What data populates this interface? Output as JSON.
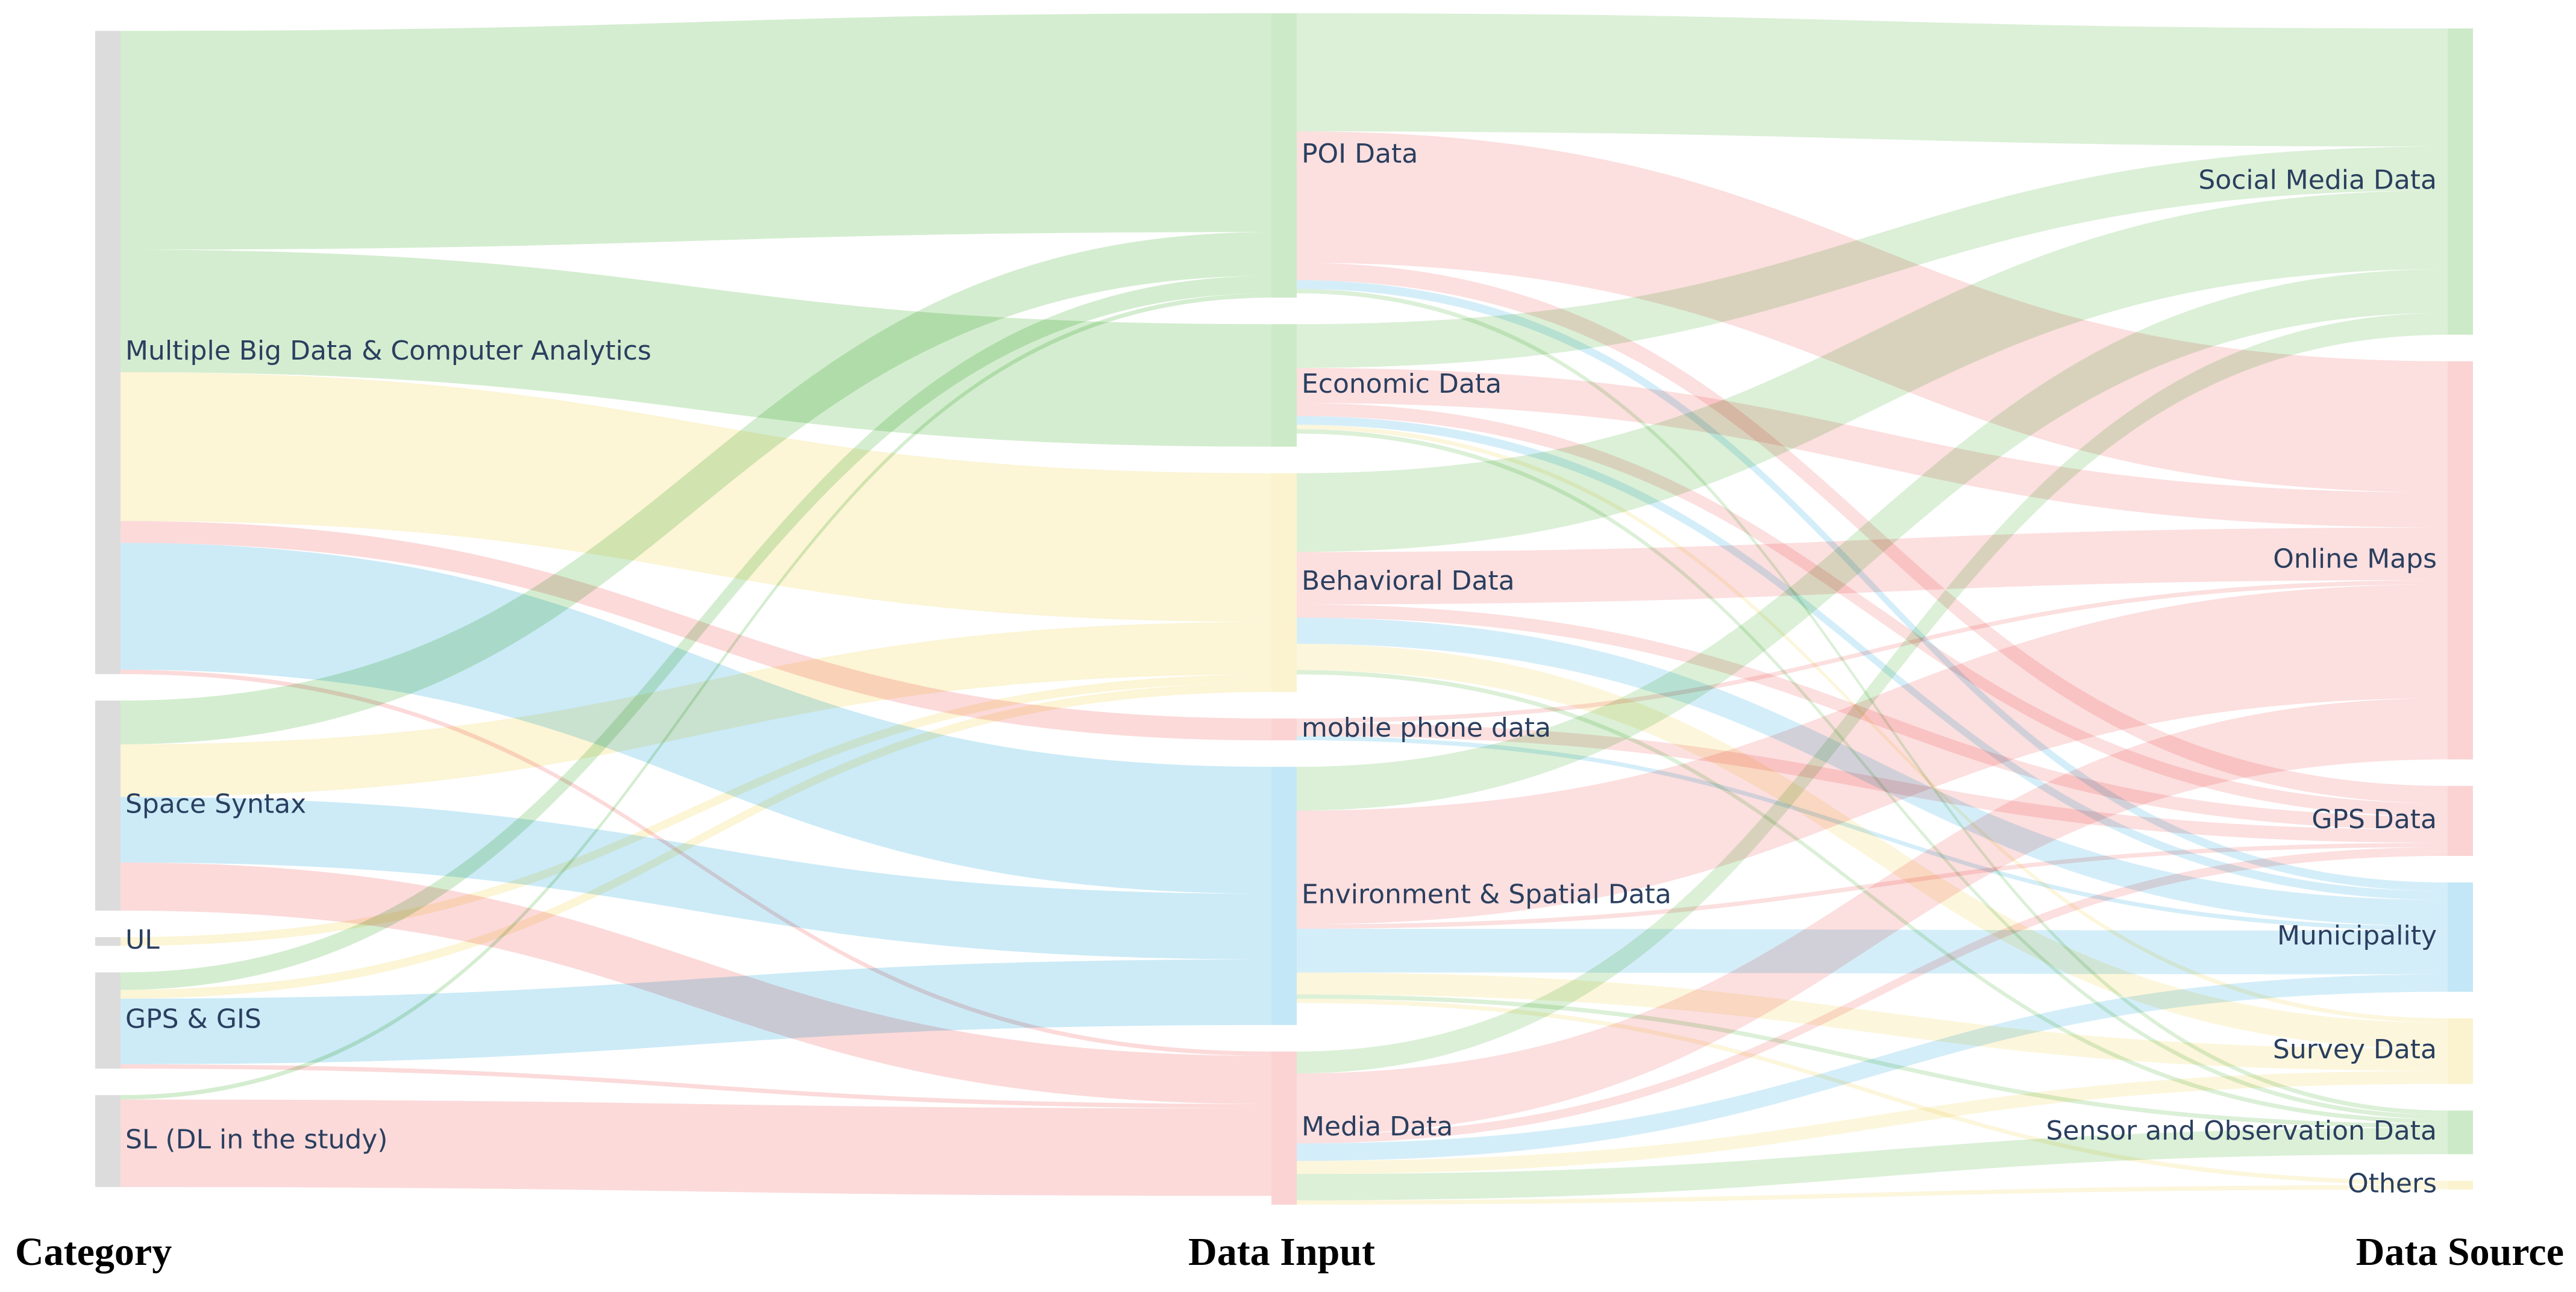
{
  "columns": [
    {
      "id": "category",
      "title": "Category"
    },
    {
      "id": "input",
      "title": "Data Input"
    },
    {
      "id": "source",
      "title": "Data Source"
    }
  ],
  "colors": {
    "category_node": "#dcdcdc",
    "green": "#cdeac8",
    "yellow": "#fbf3cf",
    "blue": "#c3e7f6",
    "red": "#fbd3d3",
    "label": "#2a3f5f"
  },
  "nodes": {
    "category": [
      {
        "id": "mbd",
        "label": "Multiple Big Data & Computer Analytics"
      },
      {
        "id": "ss",
        "label": "Space Syntax"
      },
      {
        "id": "ul",
        "label": "UL"
      },
      {
        "id": "gps",
        "label": "GPS & GIS"
      },
      {
        "id": "sl",
        "label": "SL (DL in the study)"
      }
    ],
    "input": [
      {
        "id": "poi",
        "label": "POI Data",
        "color": "green"
      },
      {
        "id": "eco",
        "label": "Economic Data",
        "color": "green"
      },
      {
        "id": "beh",
        "label": "Behavioral Data",
        "color": "yellow"
      },
      {
        "id": "mob",
        "label": "mobile phone data",
        "color": "red"
      },
      {
        "id": "env",
        "label": "Environment & Spatial Data",
        "color": "blue"
      },
      {
        "id": "med",
        "label": "Media Data",
        "color": "red"
      }
    ],
    "source": [
      {
        "id": "smd",
        "label": "Social Media Data",
        "color": "green"
      },
      {
        "id": "om",
        "label": "Online Maps",
        "color": "red"
      },
      {
        "id": "gpsd",
        "label": "GPS Data",
        "color": "red"
      },
      {
        "id": "mun",
        "label": "Municipality",
        "color": "blue"
      },
      {
        "id": "sur",
        "label": "Survey Data",
        "color": "yellow"
      },
      {
        "id": "sen",
        "label": "Sensor and Observation Data",
        "color": "green"
      },
      {
        "id": "oth",
        "label": "Others",
        "color": "yellow"
      }
    ]
  },
  "links_left": [
    {
      "source": "mbd",
      "target": "poi",
      "value": 50,
      "color": "green"
    },
    {
      "source": "mbd",
      "target": "eco",
      "value": 28,
      "color": "green"
    },
    {
      "source": "mbd",
      "target": "beh",
      "value": 32,
      "color": "yellow"
    },
    {
      "source": "mbd",
      "target": "beh",
      "value": 2,
      "color": "yellow"
    },
    {
      "source": "mbd",
      "target": "mob",
      "value": 5,
      "color": "red"
    },
    {
      "source": "mbd",
      "target": "env",
      "value": 29,
      "color": "blue"
    },
    {
      "source": "mbd",
      "target": "med",
      "value": 1,
      "color": "red"
    },
    {
      "source": "ss",
      "target": "poi",
      "value": 10,
      "color": "green"
    },
    {
      "source": "ss",
      "target": "beh",
      "value": 12,
      "color": "yellow"
    },
    {
      "source": "ss",
      "target": "env",
      "value": 15,
      "color": "blue"
    },
    {
      "source": "ss",
      "target": "med",
      "value": 11,
      "color": "red"
    },
    {
      "source": "ul",
      "target": "beh",
      "value": 2,
      "color": "yellow"
    },
    {
      "source": "gps",
      "target": "poi",
      "value": 4,
      "color": "green"
    },
    {
      "source": "gps",
      "target": "beh",
      "value": 2,
      "color": "yellow"
    },
    {
      "source": "gps",
      "target": "env",
      "value": 15,
      "color": "blue"
    },
    {
      "source": "gps",
      "target": "med",
      "value": 1,
      "color": "red"
    },
    {
      "source": "sl",
      "target": "poi",
      "value": 1,
      "color": "green"
    },
    {
      "source": "sl",
      "target": "med",
      "value": 20,
      "color": "red"
    }
  ],
  "links_right": [
    {
      "source": "poi",
      "target": "smd",
      "value": 27,
      "color": "green"
    },
    {
      "source": "poi",
      "target": "om",
      "value": 30,
      "color": "red"
    },
    {
      "source": "poi",
      "target": "gpsd",
      "value": 4,
      "color": "red"
    },
    {
      "source": "poi",
      "target": "mun",
      "value": 2,
      "color": "blue"
    },
    {
      "source": "poi",
      "target": "sen",
      "value": 1,
      "color": "green"
    },
    {
      "source": "eco",
      "target": "smd",
      "value": 10,
      "color": "green"
    },
    {
      "source": "eco",
      "target": "om",
      "value": 8,
      "color": "red"
    },
    {
      "source": "eco",
      "target": "gpsd",
      "value": 3,
      "color": "red"
    },
    {
      "source": "eco",
      "target": "mun",
      "value": 2,
      "color": "blue"
    },
    {
      "source": "eco",
      "target": "sur",
      "value": 1,
      "color": "yellow"
    },
    {
      "source": "eco",
      "target": "sen",
      "value": 1,
      "color": "green"
    },
    {
      "source": "beh",
      "target": "smd",
      "value": 18,
      "color": "green"
    },
    {
      "source": "beh",
      "target": "om",
      "value": 12,
      "color": "red"
    },
    {
      "source": "beh",
      "target": "gpsd",
      "value": 3,
      "color": "red"
    },
    {
      "source": "beh",
      "target": "mun",
      "value": 6,
      "color": "blue"
    },
    {
      "source": "beh",
      "target": "sur",
      "value": 6,
      "color": "yellow"
    },
    {
      "source": "beh",
      "target": "sen",
      "value": 1,
      "color": "green"
    },
    {
      "source": "mob",
      "target": "om",
      "value": 1,
      "color": "red"
    },
    {
      "source": "mob",
      "target": "gpsd",
      "value": 3,
      "color": "red"
    },
    {
      "source": "mob",
      "target": "mun",
      "value": 1,
      "color": "blue"
    },
    {
      "source": "env",
      "target": "smd",
      "value": 10,
      "color": "green"
    },
    {
      "source": "env",
      "target": "om",
      "value": 26,
      "color": "red"
    },
    {
      "source": "env",
      "target": "gpsd",
      "value": 1,
      "color": "red"
    },
    {
      "source": "env",
      "target": "mun",
      "value": 10,
      "color": "blue"
    },
    {
      "source": "env",
      "target": "sur",
      "value": 5,
      "color": "yellow"
    },
    {
      "source": "env",
      "target": "sen",
      "value": 1,
      "color": "green"
    },
    {
      "source": "env",
      "target": "oth",
      "value": 1,
      "color": "yellow"
    },
    {
      "source": "med",
      "target": "smd",
      "value": 5,
      "color": "green"
    },
    {
      "source": "med",
      "target": "om",
      "value": 14,
      "color": "red"
    },
    {
      "source": "med",
      "target": "gpsd",
      "value": 2,
      "color": "red"
    },
    {
      "source": "med",
      "target": "mun",
      "value": 4,
      "color": "blue"
    },
    {
      "source": "med",
      "target": "sur",
      "value": 3,
      "color": "yellow"
    },
    {
      "source": "med",
      "target": "sen",
      "value": 6,
      "color": "green"
    },
    {
      "source": "med",
      "target": "oth",
      "value": 1,
      "color": "yellow"
    }
  ]
}
